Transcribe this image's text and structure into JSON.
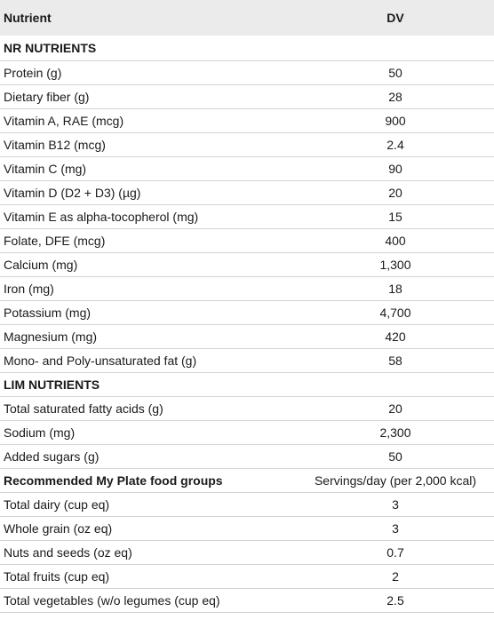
{
  "header": {
    "col1": "Nutrient",
    "col2": "DV"
  },
  "sections": [
    {
      "title": "NR NUTRIENTS",
      "rows": [
        {
          "name": "Protein (g)",
          "value": "50"
        },
        {
          "name": "Dietary fiber (g)",
          "value": "28"
        },
        {
          "name": "Vitamin A, RAE (mcg)",
          "value": "900"
        },
        {
          "name": "Vitamin B12 (mcg)",
          "value": "2.4"
        },
        {
          "name": "Vitamin C (mg)",
          "value": "90"
        },
        {
          "name": "Vitamin D (D2 + D3) (µg)",
          "value": "20"
        },
        {
          "name": "Vitamin E as alpha-tocopherol (mg)",
          "value": "15"
        },
        {
          "name": "Folate, DFE (mcg)",
          "value": "400"
        },
        {
          "name": "Calcium (mg)",
          "value": "1,300"
        },
        {
          "name": "Iron (mg)",
          "value": "18"
        },
        {
          "name": "Potassium (mg)",
          "value": "4,700"
        },
        {
          "name": "Magnesium (mg)",
          "value": "420"
        },
        {
          "name": "Mono- and Poly-unsaturated fat (g)",
          "value": "58"
        }
      ]
    },
    {
      "title": "LIM NUTRIENTS",
      "rows": [
        {
          "name": "Total saturated fatty acids (g)",
          "value": "20"
        },
        {
          "name": "Sodium (mg)",
          "value": "2,300"
        },
        {
          "name": "Added sugars (g)",
          "value": "50"
        }
      ]
    },
    {
      "title": "Recommended My Plate food groups",
      "subheader": "Servings/day (per 2,000 kcal)",
      "rows": [
        {
          "name": "Total dairy (cup eq)",
          "value": "3"
        },
        {
          "name": "Whole grain (oz eq)",
          "value": "3"
        },
        {
          "name": "Nuts and seeds (oz eq)",
          "value": "0.7"
        },
        {
          "name": "Total fruits (cup eq)",
          "value": "2"
        },
        {
          "name": "Total vegetables (w/o legumes (cup eq)",
          "value": "2.5"
        }
      ]
    }
  ]
}
